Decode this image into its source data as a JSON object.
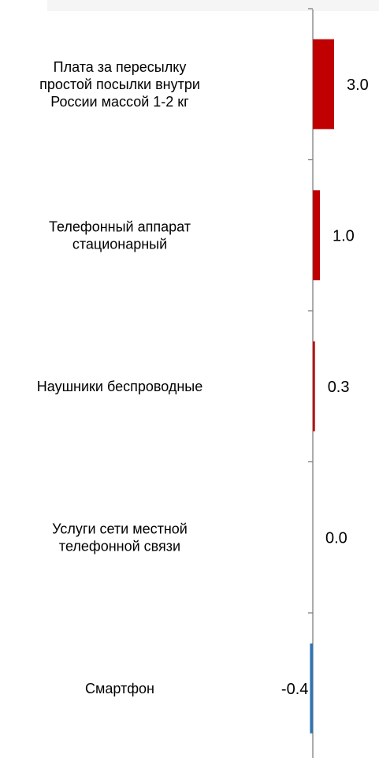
{
  "chart_data": {
    "type": "bar",
    "orientation": "horizontal",
    "categories": [
      [
        "Плата за пересылку",
        "простой посылки внутри",
        "России массой 1-2 кг"
      ],
      [
        "Телефонный аппарат",
        "стационарный"
      ],
      [
        "Наушники беспроводные"
      ],
      [
        "Услуги сети местной",
        "телефонной связи"
      ],
      [
        "Смартфон"
      ]
    ],
    "values": [
      3.0,
      1.0,
      0.3,
      0.0,
      -0.4
    ],
    "value_labels": [
      "3.0",
      "1.0",
      "0.3",
      "0.0",
      "-0.4"
    ],
    "colors": {
      "positive": "#c00000",
      "negative": "#2e75b6",
      "axis": "#7f7f7f"
    },
    "grid": false,
    "legend": "none"
  }
}
